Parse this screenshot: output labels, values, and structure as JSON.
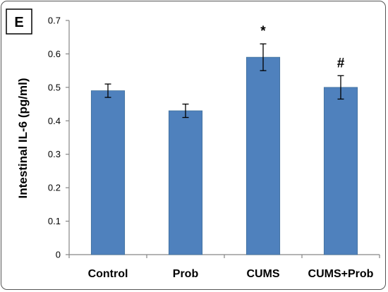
{
  "chart_data": {
    "type": "bar",
    "panel_label": "E",
    "categories": [
      "Control",
      "Prob",
      "CUMS",
      "CUMS+Prob"
    ],
    "values": [
      0.49,
      0.43,
      0.59,
      0.5
    ],
    "errors": [
      0.02,
      0.02,
      0.04,
      0.035
    ],
    "annotations": [
      "",
      "",
      "*",
      "#"
    ],
    "ylabel": "Intestinal IL-6 (pg/ml)",
    "xlabel": "",
    "ylim": [
      0,
      0.7
    ],
    "yticks": [
      "0",
      "0.1",
      "0.2",
      "0.3",
      "0.4",
      "0.5",
      "0.6",
      "0.7"
    ],
    "bar_color": "#4f81bd",
    "grid": false,
    "legend": "none"
  }
}
